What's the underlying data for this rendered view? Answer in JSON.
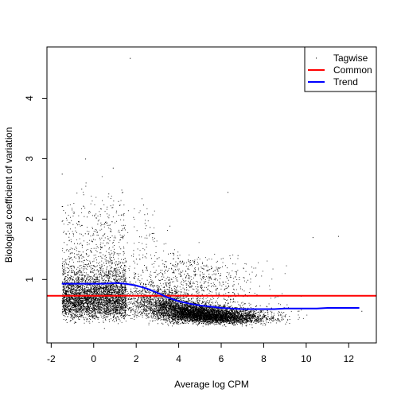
{
  "chart_data": {
    "type": "scatter",
    "xlabel": "Average log CPM",
    "ylabel": "Biological coefficient of variation",
    "xlim": [
      -2.2,
      13.3
    ],
    "ylim": [
      -0.05,
      4.85
    ],
    "x_ticks": [
      -2,
      0,
      2,
      4,
      6,
      8,
      10,
      12
    ],
    "y_ticks": [
      1,
      2,
      3,
      4
    ],
    "grid": false,
    "legend_position": "top-right",
    "series": [
      {
        "name": "Tagwise",
        "kind": "points",
        "color": "#000000",
        "n_points": 12000,
        "x_range": [
          -1.6,
          12.8
        ],
        "outliers": [
          [
            1.7,
            4.67
          ],
          [
            -0.4,
            3.0
          ],
          [
            0.9,
            2.85
          ],
          [
            -1.5,
            2.75
          ],
          [
            6.3,
            2.45
          ],
          [
            10.3,
            1.7
          ],
          [
            11.5,
            1.72
          ],
          [
            12.6,
            0.48
          ]
        ]
      },
      {
        "name": "Common",
        "kind": "hline",
        "color": "#ff0000",
        "value": 0.73
      },
      {
        "name": "Trend",
        "kind": "line",
        "color": "#0000ff",
        "x": [
          -1.5,
          -1.0,
          -0.5,
          0.0,
          0.5,
          1.0,
          1.5,
          2.0,
          2.5,
          3.0,
          3.5,
          4.0,
          4.5,
          5.0,
          5.5,
          6.0,
          6.5,
          7.0,
          7.5,
          8.0,
          8.5,
          9.0,
          9.5,
          10.0,
          10.5,
          11.0,
          11.5,
          12.0,
          12.5
        ],
        "y": [
          0.93,
          0.93,
          0.93,
          0.93,
          0.93,
          0.94,
          0.93,
          0.9,
          0.85,
          0.78,
          0.7,
          0.64,
          0.6,
          0.57,
          0.55,
          0.53,
          0.52,
          0.51,
          0.51,
          0.51,
          0.51,
          0.52,
          0.52,
          0.52,
          0.52,
          0.53,
          0.53,
          0.53,
          0.53
        ]
      }
    ],
    "legend": [
      "Tagwise",
      "Common",
      "Trend"
    ]
  }
}
